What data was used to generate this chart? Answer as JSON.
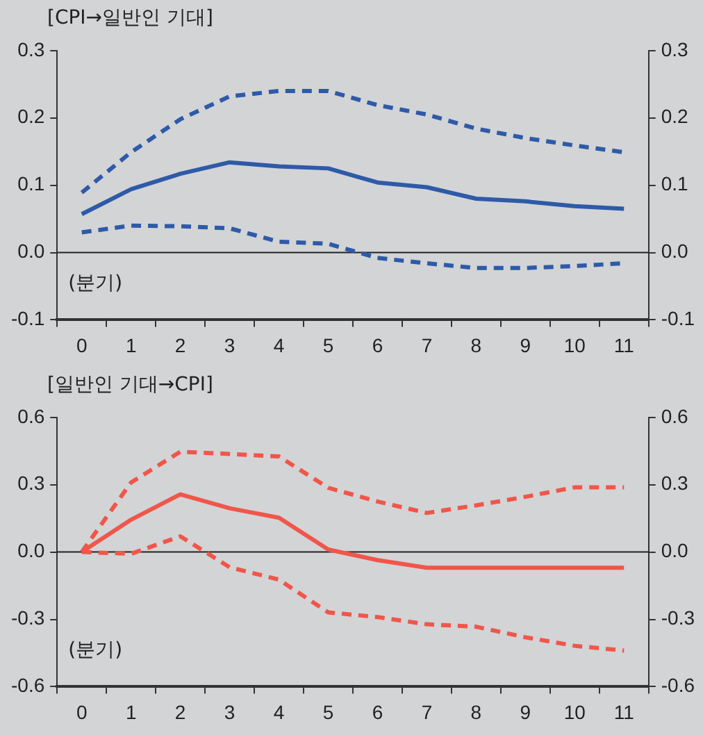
{
  "chart_data": [
    {
      "type": "line",
      "title": "[CPI→일반인 기대]",
      "categories": [
        "0",
        "1",
        "2",
        "3",
        "4",
        "5",
        "6",
        "7",
        "8",
        "9",
        "10",
        "11"
      ],
      "series": [
        {
          "color": "#2e5aa8",
          "line_style": "dashed",
          "values": [
            0.089,
            0.149,
            0.198,
            0.232,
            0.24,
            0.24,
            0.219,
            0.205,
            0.184,
            0.17,
            0.159,
            0.149
          ]
        },
        {
          "color": "#2e5aa8",
          "line_style": "solid",
          "values": [
            0.057,
            0.094,
            0.117,
            0.134,
            0.128,
            0.125,
            0.104,
            0.097,
            0.08,
            0.076,
            0.069,
            0.065
          ]
        },
        {
          "color": "#2e5aa8",
          "line_style": "dashed",
          "values": [
            0.03,
            0.04,
            0.039,
            0.036,
            0.016,
            0.013,
            -0.008,
            -0.016,
            -0.023,
            -0.023,
            -0.02,
            -0.016
          ]
        }
      ],
      "ylim": [
        -0.1,
        0.3
      ],
      "yticks": [
        {
          "value": -0.1,
          "label": "-0.1"
        },
        {
          "value": 0,
          "label": "0.0"
        },
        {
          "value": 0.1,
          "label": "0.1"
        },
        {
          "value": 0.2,
          "label": "0.2"
        },
        {
          "value": 0.3,
          "label": "0.3"
        }
      ],
      "y2lim": [
        -0.1,
        0.3
      ],
      "y2ticks": [
        {
          "value": -0.1,
          "label": "-0.1"
        },
        {
          "value": 0,
          "label": "0.0"
        },
        {
          "value": 0.1,
          "label": "0.1"
        },
        {
          "value": 0.2,
          "label": "0.2"
        },
        {
          "value": 0.3,
          "label": "0.3"
        }
      ],
      "ref_lines": [
        {
          "axis": "y",
          "value": 0,
          "color": "#222222"
        }
      ],
      "annotations": [
        "(분기)"
      ],
      "legend": false,
      "grid": false,
      "marker": "none"
    },
    {
      "type": "line",
      "title": "[일반인 기대→CPI]",
      "categories": [
        "0",
        "1",
        "2",
        "3",
        "4",
        "5",
        "6",
        "7",
        "8",
        "9",
        "10",
        "11"
      ],
      "series": [
        {
          "color": "#f0564a",
          "line_style": "dashed",
          "values": [
            0,
            0.31,
            0.447,
            0.437,
            0.426,
            0.286,
            0.225,
            0.174,
            0.208,
            0.246,
            0.288,
            0.288
          ]
        },
        {
          "color": "#f0564a",
          "line_style": "solid",
          "values": [
            0,
            0.144,
            0.257,
            0.195,
            0.153,
            0.011,
            -0.036,
            -0.07,
            -0.07,
            -0.07,
            -0.07,
            -0.07
          ]
        },
        {
          "color": "#f0564a",
          "line_style": "dashed",
          "values": [
            0,
            -0.008,
            0.07,
            -0.068,
            -0.123,
            -0.269,
            -0.29,
            -0.322,
            -0.333,
            -0.38,
            -0.418,
            -0.439
          ]
        }
      ],
      "ylim": [
        -0.6,
        0.6
      ],
      "yticks": [
        {
          "value": -0.6,
          "label": "-0.6"
        },
        {
          "value": -0.3,
          "label": "-0.3"
        },
        {
          "value": 0,
          "label": "0.0"
        },
        {
          "value": 0.3,
          "label": "0.3"
        },
        {
          "value": 0.6,
          "label": "0.6"
        }
      ],
      "y2lim": [
        -0.6,
        0.6
      ],
      "y2ticks": [
        {
          "value": -0.6,
          "label": "-0.6"
        },
        {
          "value": -0.3,
          "label": "-0.3"
        },
        {
          "value": 0,
          "label": "0.0"
        },
        {
          "value": 0.3,
          "label": "0.3"
        },
        {
          "value": 0.6,
          "label": "0.6"
        }
      ],
      "ref_lines": [
        {
          "axis": "y",
          "value": 0,
          "color": "#222222"
        }
      ],
      "annotations": [
        "(분기)"
      ],
      "legend": false,
      "grid": false,
      "marker": "none"
    }
  ]
}
